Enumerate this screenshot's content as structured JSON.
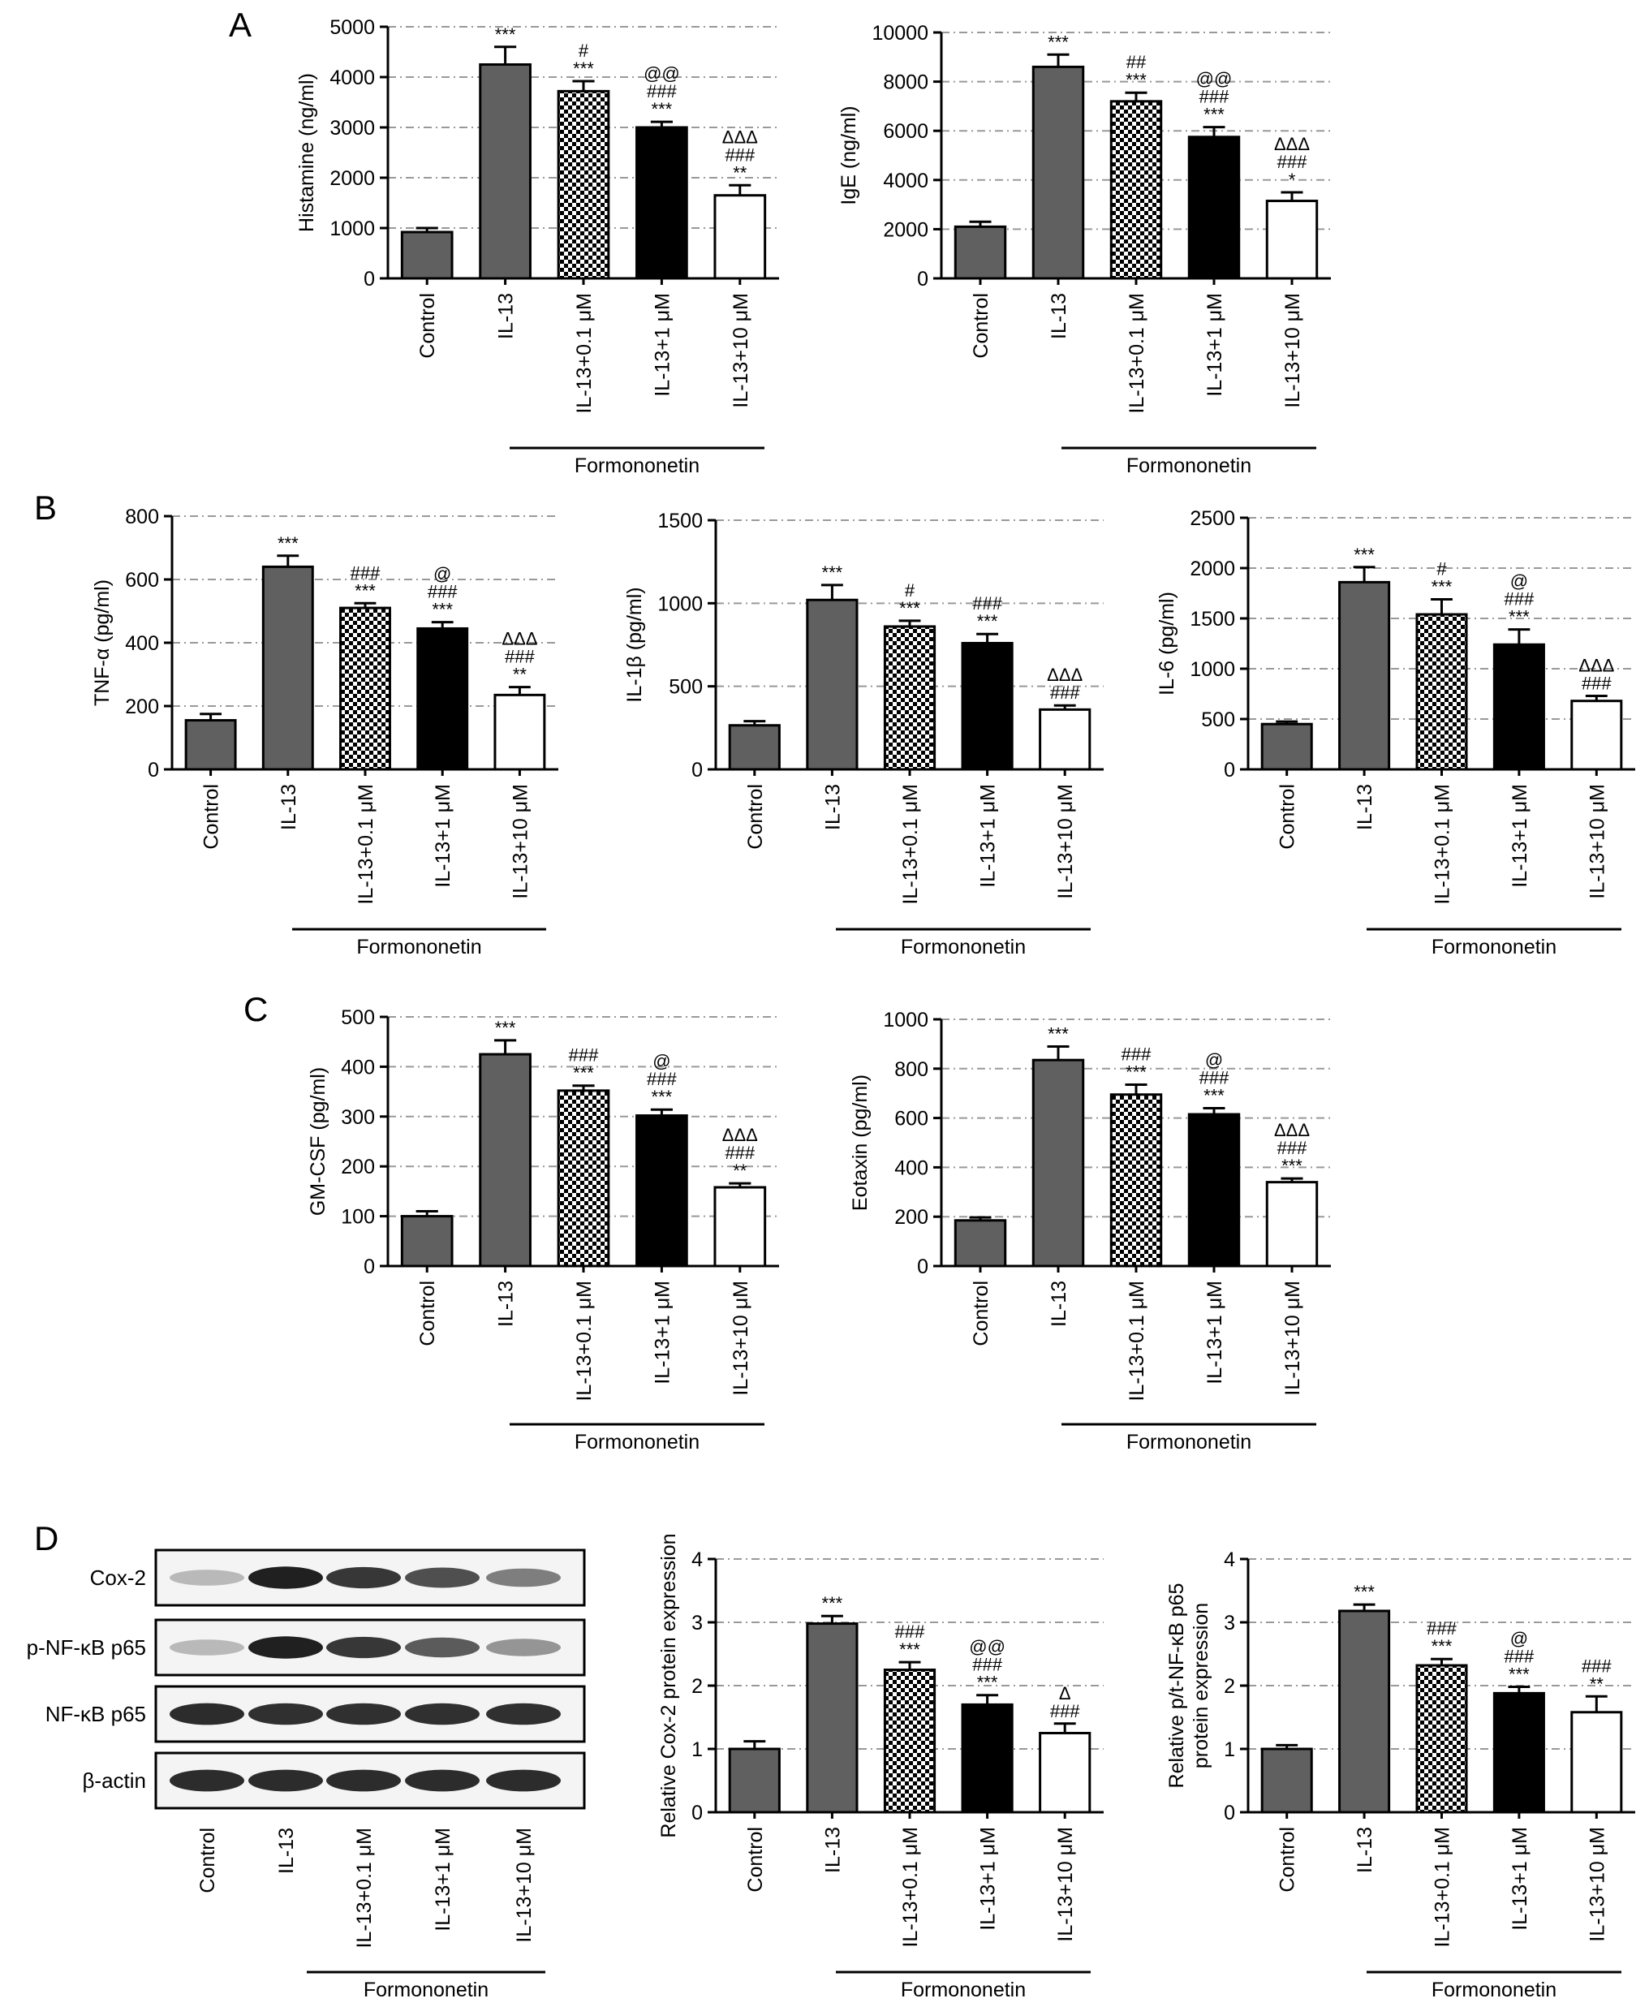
{
  "panel_letters": [
    "A",
    "B",
    "C",
    "D"
  ],
  "categories": [
    "Control",
    "IL-13",
    "IL-13+0.1 μM",
    "IL-13+1 μM",
    "IL-13+10 μM"
  ],
  "group_label": "Formononetin",
  "bar_styles": [
    {
      "fill": "#606060",
      "pattern": "none"
    },
    {
      "fill": "#606060",
      "pattern": "none"
    },
    {
      "fill": "#ffffff",
      "pattern": "checker"
    },
    {
      "fill": "#000000",
      "pattern": "none"
    },
    {
      "fill": "#ffffff",
      "pattern": "none"
    }
  ],
  "western_blot": {
    "bands": [
      "Cox-2",
      "p-NF-κB p65",
      "NF-κB p65",
      "β-actin"
    ],
    "lanes": [
      "Control",
      "IL-13",
      "IL-13+0.1 μM",
      "IL-13+1 μM",
      "IL-13+10 μM"
    ],
    "group_label": "Formononetin",
    "intensity": [
      [
        0.3,
        0.95,
        0.85,
        0.75,
        0.55
      ],
      [
        0.3,
        0.95,
        0.85,
        0.7,
        0.45
      ],
      [
        0.9,
        0.88,
        0.88,
        0.88,
        0.88
      ],
      [
        0.9,
        0.9,
        0.9,
        0.9,
        0.9
      ]
    ]
  },
  "chart_data": [
    {
      "type": "bar",
      "panel": "A",
      "categories": [
        "Control",
        "IL-13",
        "IL-13+0.1 μM",
        "IL-13+1 μM",
        "IL-13+10 μM"
      ],
      "ylabel": "Histamine (ng/ml)",
      "ylim": [
        0,
        5000
      ],
      "yticks": [
        0,
        1000,
        2000,
        3000,
        4000,
        5000
      ],
      "values": [
        920,
        4250,
        3720,
        3000,
        1650
      ],
      "errors": [
        80,
        350,
        200,
        110,
        200
      ],
      "sig": [
        [],
        [
          "***"
        ],
        [
          "#",
          "***"
        ],
        [
          "@@",
          "###",
          "***"
        ],
        [
          "ΔΔΔ",
          "###",
          "**"
        ]
      ]
    },
    {
      "type": "bar",
      "panel": "A",
      "categories": [
        "Control",
        "IL-13",
        "IL-13+0.1 μM",
        "IL-13+1 μM",
        "IL-13+10 μM"
      ],
      "ylabel": "IgE (ng/ml)",
      "ylim": [
        0,
        10000
      ],
      "yticks": [
        0,
        2000,
        4000,
        6000,
        8000,
        10000
      ],
      "values": [
        2100,
        8600,
        7200,
        5750,
        3150
      ],
      "errors": [
        200,
        500,
        350,
        400,
        350
      ],
      "sig": [
        [],
        [
          "***"
        ],
        [
          "##",
          "***"
        ],
        [
          "@@",
          "###",
          "***"
        ],
        [
          "ΔΔΔ",
          "###",
          "*"
        ]
      ]
    },
    {
      "type": "bar",
      "panel": "B",
      "categories": [
        "Control",
        "IL-13",
        "IL-13+0.1 μM",
        "IL-13+1 μM",
        "IL-13+10 μM"
      ],
      "ylabel": "TNF-α (pg/ml)",
      "ylim": [
        0,
        800
      ],
      "yticks": [
        0,
        200,
        400,
        600,
        800
      ],
      "values": [
        155,
        640,
        510,
        445,
        235
      ],
      "errors": [
        20,
        35,
        15,
        20,
        25
      ],
      "sig": [
        [],
        [
          "***"
        ],
        [
          "###",
          "***"
        ],
        [
          "@",
          "###",
          "***"
        ],
        [
          "ΔΔΔ",
          "###",
          "**"
        ]
      ]
    },
    {
      "type": "bar",
      "panel": "B",
      "categories": [
        "Control",
        "IL-13",
        "IL-13+0.1 μM",
        "IL-13+1 μM",
        "IL-13+10 μM"
      ],
      "ylabel": "IL-1β (pg/ml)",
      "ylim": [
        0,
        1500
      ],
      "yticks": [
        0,
        500,
        1000,
        1500
      ],
      "values": [
        265,
        1020,
        860,
        760,
        360
      ],
      "errors": [
        25,
        90,
        35,
        55,
        25
      ],
      "sig": [
        [],
        [
          "***"
        ],
        [
          "#",
          "***"
        ],
        [
          "###",
          "***"
        ],
        [
          "ΔΔΔ",
          "###"
        ]
      ]
    },
    {
      "type": "bar",
      "panel": "B",
      "categories": [
        "Control",
        "IL-13",
        "IL-13+0.1 μM",
        "IL-13+1 μM",
        "IL-13+10 μM"
      ],
      "ylabel": "IL-6 (pg/ml)",
      "ylim": [
        0,
        2500
      ],
      "yticks": [
        0,
        500,
        1000,
        1500,
        2000,
        2500
      ],
      "values": [
        450,
        1860,
        1540,
        1240,
        680
      ],
      "errors": [
        25,
        150,
        150,
        150,
        50
      ],
      "sig": [
        [],
        [
          "***"
        ],
        [
          "#",
          "***"
        ],
        [
          "@",
          "###",
          "***"
        ],
        [
          "ΔΔΔ",
          "###"
        ]
      ]
    },
    {
      "type": "bar",
      "panel": "C",
      "categories": [
        "Control",
        "IL-13",
        "IL-13+0.1 μM",
        "IL-13+1 μM",
        "IL-13+10 μM"
      ],
      "ylabel": "GM-CSF (pg/ml)",
      "ylim": [
        0,
        500
      ],
      "yticks": [
        0,
        100,
        200,
        300,
        400,
        500
      ],
      "values": [
        100,
        425,
        352,
        302,
        158
      ],
      "errors": [
        10,
        28,
        10,
        12,
        8
      ],
      "sig": [
        [],
        [
          "***"
        ],
        [
          "###",
          "***"
        ],
        [
          "@",
          "###",
          "***"
        ],
        [
          "ΔΔΔ",
          "###",
          "**"
        ]
      ]
    },
    {
      "type": "bar",
      "panel": "C",
      "categories": [
        "Control",
        "IL-13",
        "IL-13+0.1 μM",
        "IL-13+1 μM",
        "IL-13+10 μM"
      ],
      "ylabel": "Eotaxin (pg/ml)",
      "ylim": [
        0,
        1000
      ],
      "yticks": [
        0,
        200,
        400,
        600,
        800,
        1000
      ],
      "values": [
        185,
        835,
        695,
        615,
        340
      ],
      "errors": [
        12,
        55,
        40,
        25,
        15
      ],
      "sig": [
        [],
        [
          "***"
        ],
        [
          "###",
          "***"
        ],
        [
          "@",
          "###",
          "***"
        ],
        [
          "ΔΔΔ",
          "###",
          "***"
        ]
      ]
    },
    {
      "type": "bar",
      "panel": "D",
      "categories": [
        "Control",
        "IL-13",
        "IL-13+0.1 μM",
        "IL-13+1 μM",
        "IL-13+10 μM"
      ],
      "ylabel": "Relative Cox-2 protein expression",
      "ylim": [
        0,
        4
      ],
      "yticks": [
        0,
        1,
        2,
        3,
        4
      ],
      "values": [
        1.0,
        2.98,
        2.25,
        1.7,
        1.25
      ],
      "errors": [
        0.12,
        0.12,
        0.12,
        0.15,
        0.15
      ],
      "sig": [
        [],
        [
          "***"
        ],
        [
          "###",
          "***"
        ],
        [
          "@@",
          "###",
          "***"
        ],
        [
          "Δ",
          "###"
        ]
      ]
    },
    {
      "type": "bar",
      "panel": "D",
      "categories": [
        "Control",
        "IL-13",
        "IL-13+0.1 μM",
        "IL-13+1 μM",
        "IL-13+10 μM"
      ],
      "ylabel": "Relative p/t-NF-κB p65\nprotein expression",
      "ylim": [
        0,
        4
      ],
      "yticks": [
        0,
        1,
        2,
        3,
        4
      ],
      "values": [
        1.0,
        3.18,
        2.32,
        1.88,
        1.58
      ],
      "errors": [
        0.06,
        0.1,
        0.1,
        0.1,
        0.25
      ],
      "sig": [
        [],
        [
          "***"
        ],
        [
          "###",
          "***"
        ],
        [
          "@",
          "###",
          "***"
        ],
        [
          "###",
          "**"
        ]
      ]
    }
  ]
}
